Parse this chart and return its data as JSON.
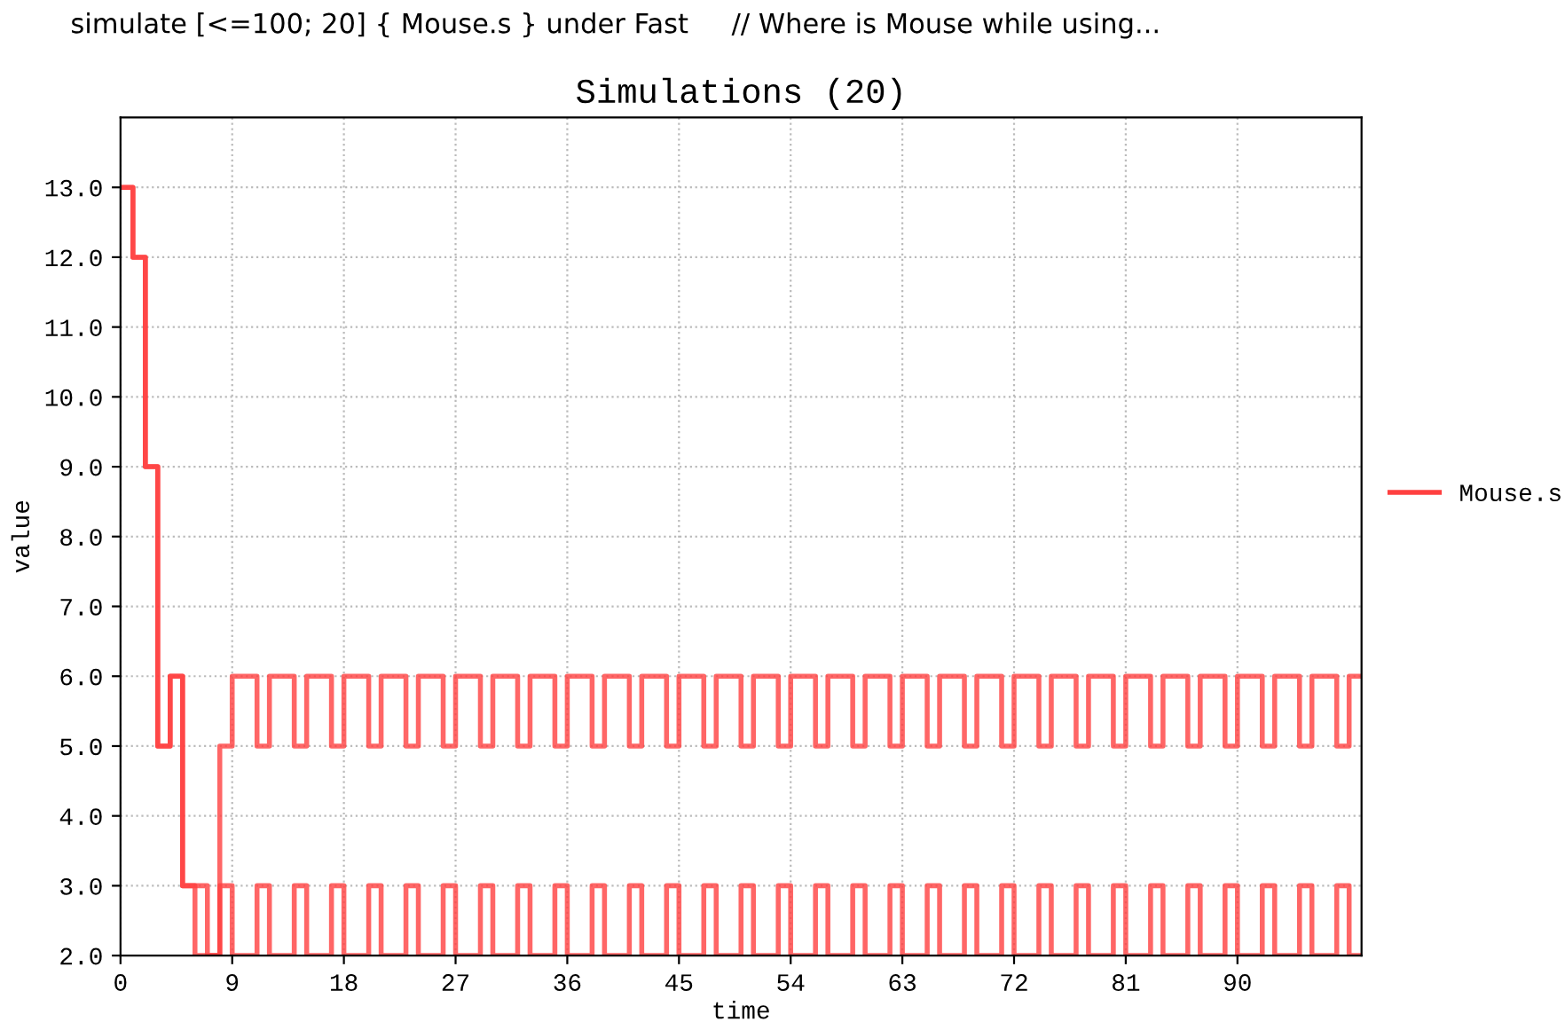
{
  "chart_data": {
    "type": "step",
    "title": "Simulations (20)",
    "xlabel": "time",
    "ylabel": "value",
    "annotations": [
      "simulate [<=100; 20] { Mouse.s } under Fast     // Where is Mouse while using..."
    ],
    "xlim": [
      0,
      100
    ],
    "ylim": [
      2,
      14
    ],
    "xticks": [
      0,
      9,
      18,
      27,
      36,
      45,
      54,
      63,
      72,
      81,
      90
    ],
    "yticks": [
      {
        "value": 2,
        "label": "2.0"
      },
      {
        "value": 3,
        "label": "3.0"
      },
      {
        "value": 4,
        "label": "4.0"
      },
      {
        "value": 5,
        "label": "5.0"
      },
      {
        "value": 6,
        "label": "6.0"
      },
      {
        "value": 7,
        "label": "7.0"
      },
      {
        "value": 8,
        "label": "8.0"
      },
      {
        "value": 9,
        "label": "9.0"
      },
      {
        "value": 10,
        "label": "10.0"
      },
      {
        "value": 11,
        "label": "11.0"
      },
      {
        "value": 12,
        "label": "12.0"
      },
      {
        "value": 13,
        "label": "13.0"
      }
    ],
    "grid": true,
    "legend": "right",
    "line_style": "solid",
    "series": [
      {
        "name": "Mouse.s",
        "color": "#ff4040",
        "x": [
          0,
          1,
          2,
          3,
          4,
          5,
          6,
          8,
          9,
          11,
          12,
          14,
          15,
          17,
          18,
          20,
          21,
          23,
          24,
          26,
          27,
          29,
          30,
          32,
          33,
          35,
          36,
          38,
          39,
          41,
          42,
          44,
          45,
          47,
          48,
          50,
          51,
          53,
          54,
          56,
          57,
          59,
          60,
          62,
          63,
          65,
          66,
          68,
          69,
          71,
          72,
          74,
          75,
          77,
          78,
          80,
          81,
          83,
          84,
          86,
          87,
          89,
          90,
          92,
          93,
          95,
          96,
          98,
          99,
          100
        ],
        "values": [
          13,
          12,
          9,
          5,
          6,
          3,
          2,
          3,
          2,
          3,
          2,
          3,
          2,
          3,
          2,
          3,
          2,
          3,
          2,
          3,
          2,
          3,
          2,
          3,
          2,
          3,
          2,
          3,
          2,
          3,
          2,
          3,
          2,
          3,
          2,
          3,
          2,
          3,
          2,
          3,
          2,
          3,
          2,
          3,
          2,
          3,
          2,
          3,
          2,
          3,
          2,
          3,
          2,
          3,
          2,
          3,
          2,
          3,
          2,
          3,
          2,
          3,
          2,
          3,
          2,
          3,
          2,
          3,
          2,
          2
        ]
      },
      {
        "color": "#ff4040",
        "x": [
          0,
          1,
          2,
          3,
          4,
          5,
          7,
          8,
          9,
          11,
          12,
          14,
          15,
          17,
          18,
          20,
          21,
          23,
          24,
          26,
          27,
          29,
          30,
          32,
          33,
          35,
          36,
          38,
          39,
          41,
          42,
          44,
          45,
          47,
          48,
          50,
          51,
          53,
          54,
          56,
          57,
          59,
          60,
          62,
          63,
          65,
          66,
          68,
          69,
          71,
          72,
          74,
          75,
          77,
          78,
          80,
          81,
          83,
          84,
          86,
          87,
          89,
          90,
          92,
          93,
          95,
          96,
          98,
          99,
          100
        ],
        "values": [
          13,
          12,
          9,
          5,
          6,
          3,
          2,
          5,
          6,
          5,
          6,
          5,
          6,
          5,
          6,
          5,
          6,
          5,
          6,
          5,
          6,
          5,
          6,
          5,
          6,
          5,
          6,
          5,
          6,
          5,
          6,
          5,
          6,
          5,
          6,
          5,
          6,
          5,
          6,
          5,
          6,
          5,
          6,
          5,
          6,
          5,
          6,
          5,
          6,
          5,
          6,
          5,
          6,
          5,
          6,
          5,
          6,
          5,
          6,
          5,
          6,
          5,
          6,
          5,
          6,
          5,
          6,
          5,
          6,
          6
        ]
      }
    ]
  }
}
